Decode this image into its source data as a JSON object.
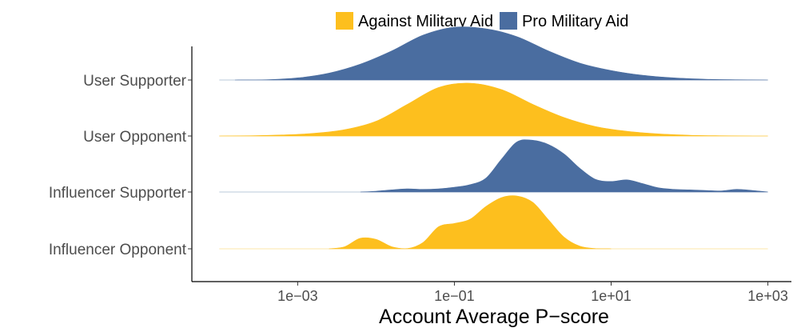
{
  "chart_data": {
    "type": "ridgeline",
    "title": "",
    "xlabel": "Account Average P−score",
    "ylabel": "",
    "x_scale": "log10",
    "xlim_log10": [
      -4.35,
      3.3
    ],
    "x_ticks": [
      {
        "log10": -3,
        "label": "1e−03"
      },
      {
        "log10": -1,
        "label": "1e−01"
      },
      {
        "log10": 1,
        "label": "1e+01"
      },
      {
        "log10": 3,
        "label": "1e+03"
      }
    ],
    "legend": {
      "position": "top",
      "entries": [
        {
          "name": "Against Military Aid",
          "color": "#FDBF1E"
        },
        {
          "name": "Pro Military Aid",
          "color": "#4A6DA0"
        }
      ]
    },
    "ridges": [
      {
        "category": "User Supporter",
        "group": "Pro Military Aid",
        "color": "#4A6DA0",
        "x_log10": [
          -3.8,
          -3.4,
          -3.0,
          -2.6,
          -2.2,
          -1.8,
          -1.4,
          -1.0,
          -0.6,
          -0.2,
          0.2,
          0.6,
          1.0,
          1.4,
          1.8,
          2.2,
          2.6,
          3.0
        ],
        "density": [
          0.0,
          0.005,
          0.04,
          0.13,
          0.3,
          0.55,
          0.85,
          1.0,
          0.97,
          0.82,
          0.55,
          0.32,
          0.18,
          0.09,
          0.04,
          0.015,
          0.005,
          0.0
        ]
      },
      {
        "category": "User Opponent",
        "group": "Against Military Aid",
        "color": "#FDBF1E",
        "x_log10": [
          -4.0,
          -3.6,
          -3.2,
          -2.8,
          -2.4,
          -2.0,
          -1.6,
          -1.2,
          -0.8,
          -0.4,
          0.0,
          0.4,
          0.8,
          1.2,
          1.6,
          2.0,
          2.4,
          2.8,
          3.0
        ],
        "density": [
          0.0,
          0.005,
          0.02,
          0.05,
          0.12,
          0.28,
          0.6,
          0.92,
          1.0,
          0.88,
          0.6,
          0.35,
          0.18,
          0.09,
          0.04,
          0.015,
          0.005,
          0.0,
          0.0
        ]
      },
      {
        "category": "Influencer Supporter",
        "group": "Pro Military Aid",
        "color": "#4A6DA0",
        "x_log10": [
          -2.2,
          -2.0,
          -1.8,
          -1.6,
          -1.4,
          -1.2,
          -1.0,
          -0.8,
          -0.6,
          -0.4,
          -0.2,
          0.0,
          0.2,
          0.4,
          0.6,
          0.8,
          1.0,
          1.2,
          1.4,
          1.6,
          1.8,
          2.0,
          2.2,
          2.4,
          2.6,
          2.8,
          3.0
        ],
        "density": [
          0.0,
          0.015,
          0.04,
          0.06,
          0.05,
          0.06,
          0.09,
          0.14,
          0.26,
          0.62,
          0.95,
          0.98,
          0.9,
          0.72,
          0.45,
          0.24,
          0.2,
          0.23,
          0.16,
          0.08,
          0.05,
          0.04,
          0.03,
          0.02,
          0.05,
          0.03,
          0.0
        ]
      },
      {
        "category": "Influencer Opponent",
        "group": "Against Military Aid",
        "color": "#FDBF1E",
        "x_log10": [
          -2.6,
          -2.4,
          -2.2,
          -2.0,
          -1.8,
          -1.6,
          -1.4,
          -1.2,
          -1.0,
          -0.8,
          -0.6,
          -0.4,
          -0.2,
          0.0,
          0.2,
          0.4,
          0.6,
          0.8,
          1.0
        ],
        "density": [
          0.0,
          0.04,
          0.2,
          0.18,
          0.04,
          0.005,
          0.12,
          0.42,
          0.48,
          0.56,
          0.8,
          0.97,
          1.0,
          0.88,
          0.55,
          0.22,
          0.05,
          0.005,
          0.0
        ]
      }
    ]
  }
}
